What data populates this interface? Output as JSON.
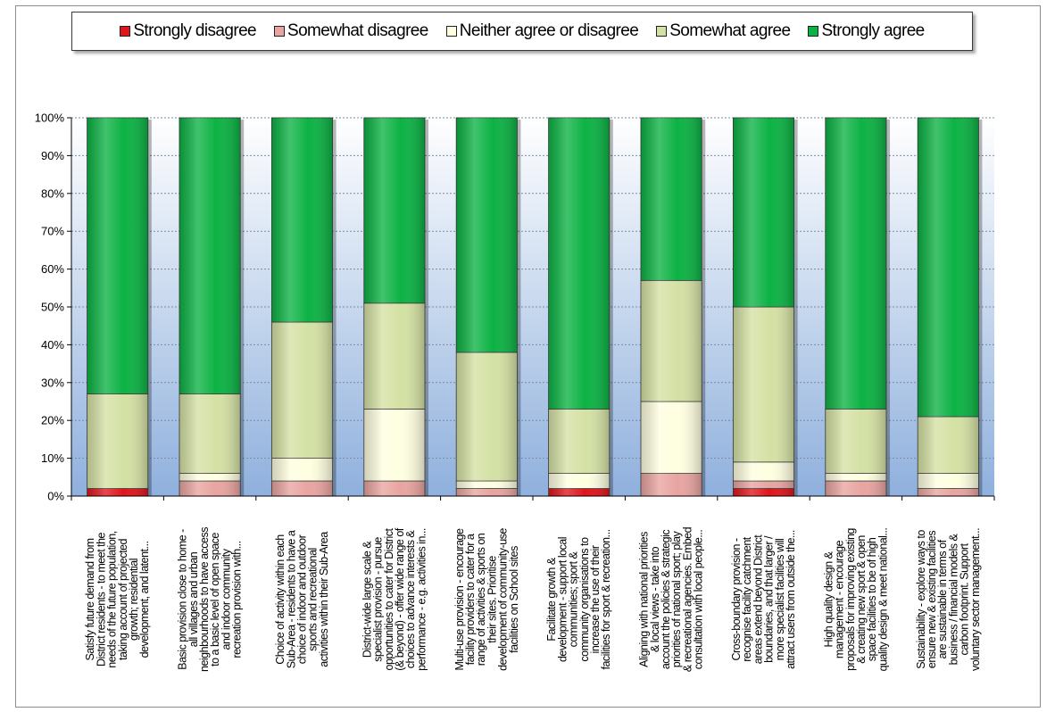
{
  "chart_data": {
    "type": "bar",
    "stacked": "percent",
    "legend_position": "top",
    "grid": true,
    "ylim": [
      0,
      100
    ],
    "yticks": [
      "0%",
      "10%",
      "20%",
      "30%",
      "40%",
      "50%",
      "60%",
      "70%",
      "80%",
      "90%",
      "100%"
    ],
    "categories": [
      [
        "Satisfy future demand from",
        "District residents - to meet the",
        "needs of the future population,",
        "taking account of projected",
        "growth; residential",
        "development, and latent..."
      ],
      [
        "Basic provision close to home -",
        "all villages and urban",
        "neighbourhoods to have access",
        "to a basic level of open space",
        "and indoor community",
        "recreation provision with..."
      ],
      [
        "Choice of activity within each",
        "Sub-Area - residents to have a",
        "choice of indoor and outdoor",
        "sports and recreational",
        "activities within their Sub-Area"
      ],
      [
        "District-wide large scale &",
        "specialist provision - pursue",
        "opportunities to cater for District",
        "(& beyond) - offer wide range of",
        "choices to advance interests &",
        "performance - e.g. activities in..."
      ],
      [
        "Multi-use provision - encourage",
        "facility providers to cater for a",
        "range of activities & sports on",
        "their sites. Prioritise",
        "development of community-use",
        "facilities on School sites"
      ],
      [
        "Facilitate growth &",
        "development - support local",
        "communities; sport &",
        "community organisations to",
        "increase the use of their",
        "facilities for sport & recreation..."
      ],
      [
        "Aligning with national priorities",
        "& local views - take into",
        "account the policies & strategic",
        "priorities of national sport; play",
        "& recreational agencies. Embed",
        "consultation with local people..."
      ],
      [
        "Cross-boundary provision -",
        "recognise facility catchment",
        "areas extend beyond District",
        "boundaries, and that larger /",
        "more specialist facilities will",
        "attract users from outside the..."
      ],
      [
        "High quality design &",
        "management - encourage",
        "proposals for improving existing",
        "& creating new sport & open",
        "space facilities to be of high",
        "quality design & meet national..."
      ],
      [
        "Sustainability - explore ways to",
        "ensure new & existing facilities",
        "are sustainable in terms of",
        "business / financial models &",
        "carbon footprint. Support",
        "voluntary sector management..."
      ]
    ],
    "series": [
      {
        "name": "Strongly disagree",
        "color": "#e0141c",
        "values": [
          2,
          0,
          0,
          0,
          0,
          2,
          0,
          2,
          0,
          0
        ]
      },
      {
        "name": "Somewhat disagree",
        "color": "#e8a4a0",
        "values": [
          0,
          4,
          4,
          4,
          2,
          0,
          6,
          2,
          4,
          2
        ]
      },
      {
        "name": "Neither agree or disagree",
        "color": "#fefee0",
        "values": [
          0,
          2,
          6,
          19,
          2,
          4,
          19,
          5,
          2,
          4
        ]
      },
      {
        "name": "Somewhat agree",
        "color": "#d4e1a4",
        "values": [
          25,
          21,
          36,
          28,
          34,
          17,
          32,
          41,
          17,
          15
        ]
      },
      {
        "name": "Strongly agree",
        "color": "#0cb244",
        "values": [
          73,
          73,
          54,
          49,
          62,
          77,
          43,
          50,
          77,
          79
        ]
      }
    ]
  }
}
